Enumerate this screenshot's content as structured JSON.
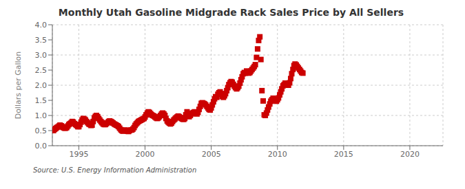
{
  "chart_data": {
    "type": "scatter",
    "title": "Monthly Utah Gasoline Midgrade Rack Sales Price by All Sellers",
    "ylabel": "Dollars per Gallon",
    "annotation": "Source: U.S. Energy Information Administration",
    "color": "#cc0000",
    "marker": "square",
    "grid": true,
    "xlim": [
      1993.0,
      2022.5
    ],
    "ylim": [
      0.0,
      4.0
    ],
    "xticks": [
      1995,
      2000,
      2005,
      2010,
      2015,
      2020
    ],
    "yticks": [
      {
        "value": 0.0,
        "label": "0.0"
      },
      0.5,
      {
        "value": 1.0,
        "label": "1.0"
      },
      1.5,
      {
        "value": 2.0,
        "label": "2.0"
      },
      2.5,
      {
        "value": 3.0,
        "label": "3.0"
      },
      3.5,
      {
        "value": 4.0,
        "label": "4.0"
      }
    ],
    "x": [
      1993.08,
      1993.17,
      1993.25,
      1993.33,
      1993.42,
      1993.5,
      1993.58,
      1993.67,
      1993.75,
      1993.83,
      1993.92,
      1994.0,
      1994.08,
      1994.17,
      1994.25,
      1994.33,
      1994.42,
      1994.5,
      1994.58,
      1994.67,
      1994.75,
      1994.83,
      1994.92,
      1995.0,
      1995.08,
      1995.17,
      1995.25,
      1995.33,
      1995.42,
      1995.5,
      1995.58,
      1995.67,
      1995.75,
      1995.83,
      1995.92,
      1996.0,
      1996.08,
      1996.17,
      1996.25,
      1996.33,
      1996.42,
      1996.5,
      1996.58,
      1996.67,
      1996.75,
      1996.83,
      1996.92,
      1997.0,
      1997.08,
      1997.17,
      1997.25,
      1997.33,
      1997.42,
      1997.5,
      1997.58,
      1997.67,
      1997.75,
      1997.83,
      1997.92,
      1998.0,
      1998.08,
      1998.17,
      1998.25,
      1998.33,
      1998.42,
      1998.5,
      1998.58,
      1998.67,
      1998.75,
      1998.83,
      1998.92,
      1999.0,
      1999.08,
      1999.17,
      1999.25,
      1999.33,
      1999.42,
      1999.5,
      1999.58,
      1999.67,
      1999.75,
      1999.83,
      1999.92,
      2000.0,
      2000.08,
      2000.17,
      2000.25,
      2000.33,
      2000.42,
      2000.5,
      2000.58,
      2000.67,
      2000.75,
      2000.83,
      2000.92,
      2001.0,
      2001.08,
      2001.17,
      2001.25,
      2001.33,
      2001.42,
      2001.5,
      2001.58,
      2001.67,
      2001.75,
      2001.83,
      2001.92,
      2002.0,
      2002.08,
      2002.17,
      2002.25,
      2002.33,
      2002.42,
      2002.5,
      2002.58,
      2002.67,
      2002.75,
      2002.83,
      2002.92,
      2003.0,
      2003.08,
      2003.17,
      2003.25,
      2003.33,
      2003.42,
      2003.5,
      2003.58,
      2003.67,
      2003.75,
      2003.83,
      2003.92,
      2004.0,
      2004.08,
      2004.17,
      2004.25,
      2004.33,
      2004.42,
      2004.5,
      2004.58,
      2004.67,
      2004.75,
      2004.83,
      2004.92,
      2005.0,
      2005.08,
      2005.17,
      2005.25,
      2005.33,
      2005.42,
      2005.5,
      2005.58,
      2005.67,
      2005.75,
      2005.83,
      2005.92,
      2006.0,
      2006.08,
      2006.17,
      2006.25,
      2006.33,
      2006.42,
      2006.5,
      2006.58,
      2006.67,
      2006.75,
      2006.83,
      2006.92,
      2007.0,
      2007.08,
      2007.17,
      2007.25,
      2007.33,
      2007.42,
      2007.5,
      2007.58,
      2007.67,
      2007.75,
      2007.83,
      2007.92,
      2008.0,
      2008.08,
      2008.17,
      2008.25,
      2008.33,
      2008.42,
      2008.5,
      2008.58,
      2008.67,
      2008.75,
      2008.83,
      2008.92,
      2009.0,
      2009.08,
      2009.17,
      2009.25,
      2009.33,
      2009.42,
      2009.5,
      2009.58,
      2009.67,
      2009.75,
      2009.83,
      2009.92,
      2010.0,
      2010.08,
      2010.17,
      2010.25,
      2010.33,
      2010.42,
      2010.5,
      2010.58,
      2010.67,
      2010.75,
      2010.83,
      2010.92,
      2011.0,
      2011.08,
      2011.17,
      2011.25,
      2011.33,
      2011.42,
      2011.5,
      2011.58,
      2011.67,
      2011.75,
      2011.83,
      2011.92
    ],
    "values": [
      0.5,
      0.54,
      0.57,
      0.6,
      0.62,
      0.65,
      0.68,
      0.66,
      0.63,
      0.6,
      0.58,
      0.58,
      0.6,
      0.65,
      0.7,
      0.73,
      0.76,
      0.8,
      0.78,
      0.73,
      0.7,
      0.67,
      0.63,
      0.63,
      0.7,
      0.78,
      0.85,
      0.9,
      0.88,
      0.85,
      0.8,
      0.76,
      0.72,
      0.7,
      0.67,
      0.68,
      0.8,
      0.92,
      0.97,
      1.0,
      0.96,
      0.9,
      0.85,
      0.8,
      0.76,
      0.72,
      0.7,
      0.7,
      0.73,
      0.76,
      0.8,
      0.82,
      0.8,
      0.78,
      0.75,
      0.72,
      0.7,
      0.68,
      0.66,
      0.63,
      0.58,
      0.53,
      0.5,
      0.48,
      0.5,
      0.52,
      0.5,
      0.48,
      0.47,
      0.5,
      0.52,
      0.52,
      0.55,
      0.6,
      0.67,
      0.72,
      0.76,
      0.8,
      0.82,
      0.84,
      0.86,
      0.88,
      0.9,
      0.95,
      1.02,
      1.08,
      1.12,
      1.1,
      1.06,
      1.02,
      1.0,
      0.98,
      0.95,
      0.92,
      0.9,
      0.92,
      0.96,
      1.0,
      1.05,
      1.08,
      1.05,
      1.0,
      0.9,
      0.82,
      0.78,
      0.75,
      0.72,
      0.75,
      0.8,
      0.85,
      0.88,
      0.92,
      0.95,
      0.98,
      0.96,
      0.93,
      0.9,
      0.88,
      0.87,
      0.9,
      1.02,
      1.12,
      1.06,
      0.96,
      1.0,
      1.05,
      1.08,
      1.1,
      1.12,
      1.08,
      1.05,
      1.1,
      1.2,
      1.3,
      1.4,
      1.42,
      1.4,
      1.38,
      1.35,
      1.3,
      1.25,
      1.2,
      1.18,
      1.25,
      1.35,
      1.45,
      1.55,
      1.62,
      1.6,
      1.7,
      1.75,
      1.78,
      1.72,
      1.63,
      1.6,
      1.65,
      1.72,
      1.82,
      1.92,
      2.02,
      2.08,
      2.12,
      2.1,
      2.03,
      1.97,
      1.92,
      1.88,
      1.92,
      1.97,
      2.07,
      2.18,
      2.28,
      2.38,
      2.42,
      2.4,
      2.47,
      2.44,
      2.4,
      2.42,
      2.47,
      2.52,
      2.57,
      2.62,
      2.68,
      2.92,
      3.2,
      3.48,
      3.6,
      2.85,
      1.82,
      1.48,
      1.02,
      1.0,
      1.08,
      1.18,
      1.28,
      1.38,
      1.47,
      1.52,
      1.57,
      1.54,
      1.5,
      1.47,
      1.52,
      1.58,
      1.68,
      1.78,
      1.88,
      1.98,
      2.02,
      2.07,
      2.04,
      2.02,
      2.0,
      2.08,
      2.22,
      2.38,
      2.52,
      2.65,
      2.7,
      2.67,
      2.62,
      2.57,
      2.52,
      2.47,
      2.42,
      2.4
    ]
  }
}
